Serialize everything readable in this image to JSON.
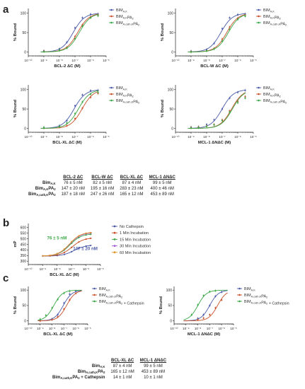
{
  "panel_letters": {
    "a": "a",
    "b": "b",
    "c": "c"
  },
  "colors": {
    "blue": "#4a5aa8",
    "red": "#c8502a",
    "green": "#3aa845",
    "orange": "#e2932a",
    "yellow": "#c9b418",
    "lightblue": "#6fa2d6",
    "pink": "#f4a0c0",
    "cyan": "#8ee0ea",
    "axis": "#222222"
  },
  "chart_data": [
    {
      "id": "a1",
      "type": "line",
      "ylabel": "% Bound",
      "xlabel": "BCL-2 ΔC (M)",
      "xscale": "log",
      "xticks": [
        "10⁻¹⁰",
        "10⁻⁹",
        "10⁻⁸",
        "10⁻⁷",
        "10⁻⁶",
        "10⁻⁵"
      ],
      "ylim": [
        0,
        100
      ],
      "yticks": [
        "0",
        "50",
        "100"
      ],
      "legend": "top-right",
      "series": [
        {
          "name": "BIM",
          "sub": "A,K",
          "color": "#4a5aa8",
          "ec50": 7.6e-08,
          "points": [
            {
              "x": 1e-09,
              "y": 3
            },
            {
              "x": 1e-08,
              "y": 8
            },
            {
              "x": 3e-08,
              "y": 25
            },
            {
              "x": 1e-07,
              "y": 62
            },
            {
              "x": 3e-07,
              "y": 88
            },
            {
              "x": 1e-06,
              "y": 97
            },
            {
              "x": 3e-06,
              "y": 98
            }
          ]
        },
        {
          "name": "BIM",
          "sub": "A,K",
          "tail": "PA",
          "tailsub": "2",
          "color": "#c8502a",
          "ec50": 1.47e-07,
          "points": [
            {
              "x": 1e-09,
              "y": 2
            },
            {
              "x": 1e-08,
              "y": 4
            },
            {
              "x": 3e-08,
              "y": 12
            },
            {
              "x": 1e-07,
              "y": 40
            },
            {
              "x": 3e-07,
              "y": 70
            },
            {
              "x": 1e-06,
              "y": 90
            },
            {
              "x": 3e-06,
              "y": 95
            }
          ]
        },
        {
          "name": "BIM",
          "sub": "A,cath,K",
          "tail": "PA",
          "tailsub": "2",
          "color": "#3aa845",
          "ec50": 1.87e-07,
          "points": [
            {
              "x": 1e-09,
              "y": 1
            },
            {
              "x": 1e-08,
              "y": 5
            },
            {
              "x": 3e-08,
              "y": 10
            },
            {
              "x": 1e-07,
              "y": 34
            },
            {
              "x": 3e-07,
              "y": 66
            },
            {
              "x": 1e-06,
              "y": 88
            },
            {
              "x": 3e-06,
              "y": 93
            }
          ]
        }
      ]
    },
    {
      "id": "a2",
      "type": "line",
      "ylabel": "% Bound",
      "xlabel": "BCL-W ΔC (M)",
      "xscale": "log",
      "xticks": [
        "10⁻¹⁰",
        "10⁻⁹",
        "10⁻⁸",
        "10⁻⁷",
        "10⁻⁶",
        "10⁻⁵"
      ],
      "ylim": [
        0,
        100
      ],
      "yticks": [
        "0",
        "50",
        "100"
      ],
      "legend": "top-right",
      "series": [
        {
          "name": "BIM",
          "sub": "A,K",
          "color": "#4a5aa8",
          "ec50": 8.2e-08,
          "points": [
            {
              "x": 1e-09,
              "y": 2
            },
            {
              "x": 1e-08,
              "y": 6
            },
            {
              "x": 3e-08,
              "y": 22
            },
            {
              "x": 1e-07,
              "y": 60
            },
            {
              "x": 3e-07,
              "y": 88
            },
            {
              "x": 1e-06,
              "y": 96
            },
            {
              "x": 3e-06,
              "y": 98
            }
          ]
        },
        {
          "name": "BIM",
          "sub": "A,K",
          "tail": "PA",
          "tailsub": "2",
          "color": "#c8502a",
          "ec50": 1.95e-07,
          "points": [
            {
              "x": 1e-09,
              "y": 1
            },
            {
              "x": 1e-08,
              "y": 3
            },
            {
              "x": 3e-08,
              "y": 9
            },
            {
              "x": 1e-07,
              "y": 33
            },
            {
              "x": 3e-07,
              "y": 64
            },
            {
              "x": 1e-06,
              "y": 87
            },
            {
              "x": 3e-06,
              "y": 94
            }
          ]
        },
        {
          "name": "BIM",
          "sub": "A,cath,K",
          "tail": "PA",
          "tailsub": "2",
          "color": "#3aa845",
          "ec50": 2.47e-07,
          "points": [
            {
              "x": 1e-09,
              "y": 0
            },
            {
              "x": 1e-08,
              "y": 3
            },
            {
              "x": 3e-08,
              "y": 8
            },
            {
              "x": 1e-07,
              "y": 28
            },
            {
              "x": 3e-07,
              "y": 58
            },
            {
              "x": 1e-06,
              "y": 84
            },
            {
              "x": 3e-06,
              "y": 92
            }
          ]
        }
      ]
    },
    {
      "id": "a3",
      "type": "line",
      "ylabel": "% Bound",
      "xlabel": "BCL-XL ΔC (M)",
      "xscale": "log",
      "xticks": [
        "10⁻¹⁰",
        "10⁻⁹",
        "10⁻⁸",
        "10⁻⁷",
        "10⁻⁶",
        "10⁻⁵"
      ],
      "ylim": [
        0,
        100
      ],
      "yticks": [
        "0",
        "50",
        "100"
      ],
      "legend": "top-right",
      "series": [
        {
          "name": "BIM",
          "sub": "A,K",
          "color": "#4a5aa8",
          "ec50": 8.7e-08,
          "points": [
            {
              "x": 1e-09,
              "y": 2
            },
            {
              "x": 1e-08,
              "y": 7
            },
            {
              "x": 3e-08,
              "y": 20
            },
            {
              "x": 1e-07,
              "y": 58
            },
            {
              "x": 3e-07,
              "y": 86
            },
            {
              "x": 1e-06,
              "y": 97
            },
            {
              "x": 3e-06,
              "y": 98
            }
          ]
        },
        {
          "name": "BIM",
          "sub": "A,K",
          "tail": "PA",
          "tailsub": "2",
          "color": "#c8502a",
          "ec50": 2.83e-07,
          "points": [
            {
              "x": 1e-09,
              "y": 1
            },
            {
              "x": 1e-08,
              "y": 3
            },
            {
              "x": 3e-08,
              "y": 7
            },
            {
              "x": 1e-07,
              "y": 25
            },
            {
              "x": 3e-07,
              "y": 52
            },
            {
              "x": 1e-06,
              "y": 80
            },
            {
              "x": 3e-06,
              "y": 90
            }
          ]
        },
        {
          "name": "BIM",
          "sub": "A,cath,K",
          "tail": "PA",
          "tailsub": "2",
          "color": "#3aa845",
          "ec50": 1.65e-07,
          "points": [
            {
              "x": 1e-09,
              "y": 2
            },
            {
              "x": 1e-08,
              "y": 5
            },
            {
              "x": 3e-08,
              "y": 14
            },
            {
              "x": 1e-07,
              "y": 38
            },
            {
              "x": 3e-07,
              "y": 68
            },
            {
              "x": 1e-06,
              "y": 88
            },
            {
              "x": 3e-06,
              "y": 93
            }
          ]
        }
      ]
    },
    {
      "id": "a4",
      "type": "line",
      "ylabel": "% Bound",
      "xlabel": "MCL-1 ΔNΔC (M)",
      "xscale": "log",
      "xticks": [
        "10⁻¹⁰",
        "10⁻⁹",
        "10⁻⁸",
        "10⁻⁷",
        "10⁻⁶",
        "10⁻⁵"
      ],
      "ylim": [
        0,
        100
      ],
      "yticks": [
        "0",
        "50",
        "100"
      ],
      "legend": "top-right",
      "series": [
        {
          "name": "BIM",
          "sub": "A,K",
          "color": "#4a5aa8",
          "ec50": 9.9e-08,
          "points": [
            {
              "x": 1e-09,
              "y": 3
            },
            {
              "x": 3e-09,
              "y": 4
            },
            {
              "x": 1e-08,
              "y": 10
            },
            {
              "x": 3e-08,
              "y": 22
            },
            {
              "x": 1e-07,
              "y": 50
            },
            {
              "x": 3e-07,
              "y": 78
            },
            {
              "x": 1e-06,
              "y": 93
            },
            {
              "x": 3e-06,
              "y": 98
            }
          ]
        },
        {
          "name": "BIM",
          "sub": "A,K",
          "tail": "PA",
          "tailsub": "2",
          "color": "#c8502a",
          "ec50": 4e-07,
          "points": [
            {
              "x": 1e-09,
              "y": 2
            },
            {
              "x": 3e-09,
              "y": 3
            },
            {
              "x": 1e-08,
              "y": 6
            },
            {
              "x": 3e-08,
              "y": 10
            },
            {
              "x": 1e-07,
              "y": 22
            },
            {
              "x": 3e-07,
              "y": 45
            },
            {
              "x": 1e-06,
              "y": 70
            },
            {
              "x": 3e-06,
              "y": 82
            }
          ]
        },
        {
          "name": "BIM",
          "sub": "A,cath,K",
          "tail": "PA",
          "tailsub": "2",
          "color": "#3aa845",
          "ec50": 4.53e-07,
          "points": [
            {
              "x": 1e-09,
              "y": 1
            },
            {
              "x": 3e-09,
              "y": 2
            },
            {
              "x": 1e-08,
              "y": 5
            },
            {
              "x": 3e-08,
              "y": 9
            },
            {
              "x": 1e-07,
              "y": 20
            },
            {
              "x": 3e-07,
              "y": 42
            },
            {
              "x": 1e-06,
              "y": 66
            },
            {
              "x": 3e-06,
              "y": 78
            }
          ]
        }
      ]
    },
    {
      "id": "b",
      "type": "line",
      "ylabel": "mP",
      "xlabel": "BCL-XL ΔC (M)",
      "xscale": "log",
      "xticks": [
        "10⁻¹⁰",
        "10⁻⁹",
        "10⁻⁸",
        "10⁻⁷",
        "10⁻⁶",
        "10⁻⁵"
      ],
      "ylim": [
        300,
        600
      ],
      "yticks": [
        "300",
        "350",
        "400",
        "450",
        "500",
        "550",
        "600"
      ],
      "legend": "right",
      "annotations": [
        {
          "text": "76 ± 5 nM",
          "color": "#3aa845"
        },
        {
          "text": "147 ± 20 nM",
          "color": "#4a5aa8"
        }
      ],
      "series": [
        {
          "name": "No Cathepsin",
          "color": "#4a5aa8",
          "bottom": 345,
          "top": 445,
          "ec50": 1.47e-07
        },
        {
          "name": "1 Min Incubation",
          "color": "#c8502a",
          "bottom": 345,
          "top": 510,
          "ec50": 1.1e-07
        },
        {
          "name": "15 Min Incubation",
          "color": "#3aa845",
          "bottom": 345,
          "top": 545,
          "ec50": 7.6e-08
        },
        {
          "name": "30 Min Incubation",
          "color": "#a25ad6",
          "bottom": 345,
          "top": 555,
          "ec50": 7.2e-08
        },
        {
          "name": "60 Min Incubation",
          "color": "#e2932a",
          "bottom": 345,
          "top": 560,
          "ec50": 7e-08
        }
      ]
    },
    {
      "id": "c1",
      "type": "line",
      "ylabel": "% Bound",
      "xlabel": "BCL-XL ΔC (M)",
      "xscale": "log",
      "xticks": [
        "10⁻¹⁰",
        "10⁻⁹",
        "10⁻⁸",
        "10⁻⁷",
        "10⁻⁶",
        "10⁻⁵"
      ],
      "ylim": [
        0,
        100
      ],
      "yticks": [
        "0",
        "50",
        "100"
      ],
      "legend": "top-right",
      "series": [
        {
          "name": "BIM",
          "sub": "A,K",
          "color": "#4a5aa8",
          "ec50": 8.7e-08,
          "points": [
            {
              "x": 1e-09,
              "y": 1
            },
            {
              "x": 1e-08,
              "y": 6
            },
            {
              "x": 3e-08,
              "y": 20
            },
            {
              "x": 1e-07,
              "y": 58
            },
            {
              "x": 3e-07,
              "y": 87
            },
            {
              "x": 1e-06,
              "y": 97
            }
          ]
        },
        {
          "name": "BIM",
          "sub": "A,cath,K",
          "tail": "PA",
          "tailsub": "2",
          "color": "#c8502a",
          "ec50": 1.65e-07,
          "points": [
            {
              "x": 1e-09,
              "y": 0
            },
            {
              "x": 1e-08,
              "y": 4
            },
            {
              "x": 3e-08,
              "y": 13
            },
            {
              "x": 1e-07,
              "y": 38
            },
            {
              "x": 3e-07,
              "y": 68
            },
            {
              "x": 1e-06,
              "y": 90
            }
          ]
        },
        {
          "name": "BIM",
          "sub": "A,cath,K",
          "tail": "PA",
          "tailsub": "2",
          "extra": " + Cathepsin",
          "color": "#3aa845",
          "ec50": 1.4e-08,
          "points": [
            {
              "x": 1e-09,
              "y": 5
            },
            {
              "x": 3e-09,
              "y": 18
            },
            {
              "x": 1e-08,
              "y": 42
            },
            {
              "x": 3e-08,
              "y": 70
            },
            {
              "x": 1e-07,
              "y": 90
            },
            {
              "x": 3e-07,
              "y": 97
            }
          ]
        }
      ]
    },
    {
      "id": "c2",
      "type": "line",
      "ylabel": "% Bound",
      "xlabel": "MCL-1 ΔNΔC (M)",
      "xscale": "log",
      "xticks": [
        "10⁻¹⁰",
        "10⁻⁹",
        "10⁻⁸",
        "10⁻⁷",
        "10⁻⁶",
        "10⁻⁵"
      ],
      "ylim": [
        0,
        100
      ],
      "yticks": [
        "0",
        "50",
        "100"
      ],
      "legend": "top-right",
      "series": [
        {
          "name": "BIM",
          "sub": "A,K",
          "color": "#4a5aa8",
          "ec50": 9.9e-08,
          "points": [
            {
              "x": 1e-08,
              "y": 8
            },
            {
              "x": 3e-08,
              "y": 20
            },
            {
              "x": 1e-07,
              "y": 50
            },
            {
              "x": 3e-07,
              "y": 80
            },
            {
              "x": 1e-06,
              "y": 94
            }
          ]
        },
        {
          "name": "BIM",
          "sub": "A,cath,K",
          "tail": "PA",
          "tailsub": "2",
          "color": "#c8502a",
          "ec50": 4.53e-07,
          "points": [
            {
              "x": 1e-08,
              "y": 4
            },
            {
              "x": 3e-08,
              "y": 9
            },
            {
              "x": 1e-07,
              "y": 20
            },
            {
              "x": 3e-07,
              "y": 42
            },
            {
              "x": 1e-06,
              "y": 68
            }
          ]
        },
        {
          "name": "BIM",
          "sub": "A,cath,K",
          "tail": "PA",
          "tailsub": "2",
          "extra": " + Cathepsin",
          "color": "#3aa845",
          "ec50": 1e-08,
          "points": [
            {
              "x": 3e-09,
              "y": 20
            },
            {
              "x": 1e-08,
              "y": 52
            },
            {
              "x": 3e-08,
              "y": 82
            },
            {
              "x": 1e-07,
              "y": 95
            },
            {
              "x": 3e-07,
              "y": 98
            }
          ]
        }
      ]
    }
  ],
  "table_a": {
    "headers": [
      "BCL-2 ΔC",
      "BCL-W ΔC",
      "BCL-XL ΔC",
      "MCL-1 ΔNΔC"
    ],
    "rows": [
      {
        "name": "Bim",
        "sub": "A,K",
        "tail": "",
        "tailsub": "",
        "values": [
          "76 ± 5 nM",
          "82 ± 5 nM",
          "87 ± 4 nM",
          "99 ± 5 nM"
        ]
      },
      {
        "name": "Bim",
        "sub": "A,K",
        "tail": "PA",
        "tailsub": "2",
        "values": [
          "147 ± 20 nM",
          "195 ± 16 nM",
          "283 ± 23 nM",
          "400 ± 46 nM"
        ]
      },
      {
        "name": "Bim",
        "sub": "A,cath,K",
        "tail": "PA",
        "tailsub": "2",
        "values": [
          "187 ± 18 nM",
          "247 ± 26 nM",
          "165 ± 12 nM",
          "453 ± 89 nM"
        ]
      }
    ]
  },
  "table_c": {
    "headers": [
      "BCL-XL ΔC",
      "MCL-1 ΔNΔC"
    ],
    "rows": [
      {
        "name": "Bim",
        "sub": "A,K",
        "tail": "",
        "tailsub": "",
        "extra": "",
        "values": [
          "87 ± 4 nM",
          "99 ± 5 nM"
        ]
      },
      {
        "name": "Bim",
        "sub": "A,cath,K",
        "tail": "PA",
        "tailsub": "2",
        "extra": "",
        "values": [
          "165 ± 12 nM",
          "453 ± 89 nM"
        ]
      },
      {
        "name": "Bim",
        "sub": "A,cath,K",
        "tail": "PA",
        "tailsub": "2",
        "extra": " + Cathepsin",
        "values": [
          "14 ± 1 nM",
          "10 ± 1 nM"
        ]
      }
    ]
  }
}
